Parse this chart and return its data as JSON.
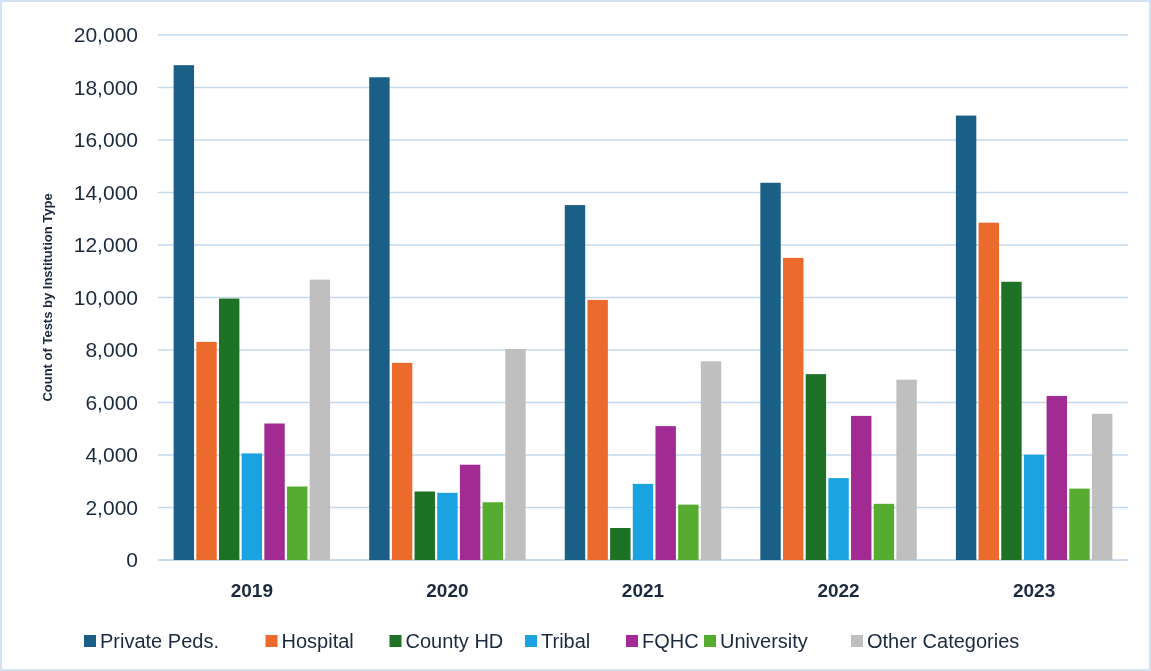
{
  "chart_data": {
    "type": "bar",
    "ylabel": "Count of Tests by Institution Type",
    "categories": [
      "2019",
      "2020",
      "2021",
      "2022",
      "2023"
    ],
    "series": [
      {
        "name": "Private Peds.",
        "color": "#1a5f86",
        "values": [
          18850,
          18390,
          13520,
          14370,
          16930
        ]
      },
      {
        "name": "Hospital",
        "color": "#ec6a2c",
        "values": [
          8310,
          7510,
          9910,
          11510,
          12850
        ]
      },
      {
        "name": "County HD",
        "color": "#1e7226",
        "values": [
          9960,
          2610,
          1220,
          7080,
          10600
        ]
      },
      {
        "name": "Tribal",
        "color": "#1aa3e0",
        "values": [
          4060,
          2560,
          2900,
          3120,
          4010
        ]
      },
      {
        "name": "FQHC",
        "color": "#a12a93",
        "values": [
          5200,
          3630,
          5100,
          5490,
          6250
        ]
      },
      {
        "name": "University",
        "color": "#55ac30",
        "values": [
          2800,
          2200,
          2110,
          2140,
          2720
        ]
      },
      {
        "name": "Other Categories",
        "color": "#bfbfbf",
        "values": [
          10680,
          8040,
          7570,
          6870,
          5570
        ]
      }
    ],
    "ylim": [
      0,
      20000
    ],
    "yticks": [
      {
        "value": 0,
        "label": "0"
      },
      {
        "value": 2000,
        "label": "2,000"
      },
      {
        "value": 4000,
        "label": "4,000"
      },
      {
        "value": 6000,
        "label": "6,000"
      },
      {
        "value": 8000,
        "label": "8,000"
      },
      {
        "value": 10000,
        "label": "10,000"
      },
      {
        "value": 12000,
        "label": "12,000"
      },
      {
        "value": 14000,
        "label": "14,000"
      },
      {
        "value": 16000,
        "label": "16,000"
      },
      {
        "value": 18000,
        "label": "18,000"
      },
      {
        "value": 20000,
        "label": "20,000"
      }
    ],
    "grid": "y",
    "legend": "bottom"
  }
}
